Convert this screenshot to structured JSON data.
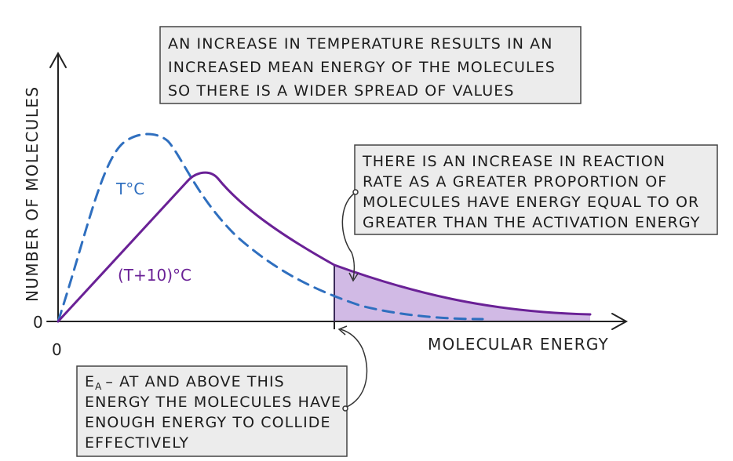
{
  "diagram": {
    "y_axis_label": "NUMBER OF MOLECULES",
    "x_axis_label": "MOLECULAR ENERGY",
    "origin_x_label": "0",
    "origin_y_label": "0",
    "curve_low_label": "T°C",
    "curve_high_label": "(T+10)°C",
    "colors": {
      "curve_low": "#2f6fbf",
      "curve_high": "#6a2196",
      "shaded_area": "#c9aee0",
      "box_fill": "#ececec",
      "box_border": "#444444"
    }
  },
  "box_top": {
    "lines": [
      "AN INCREASE IN TEMPERATURE RESULTS IN AN",
      "INCREASED MEAN ENERGY OF THE MOLECULES",
      "SO THERE IS A WIDER SPREAD OF VALUES"
    ]
  },
  "box_right": {
    "lines": [
      "THERE IS AN INCREASE IN REACTION",
      "RATE AS A GREATER PROPORTION OF",
      "MOLECULES HAVE ENERGY EQUAL TO OR",
      "GREATER THAN THE ACTIVATION ENERGY"
    ]
  },
  "box_bottom": {
    "ea_symbol": "E",
    "ea_subscript": "A",
    "first_line_rest": "– AT AND ABOVE THIS",
    "lines": [
      "ENERGY THE MOLECULES HAVE",
      "ENOUGH ENERGY TO COLLIDE",
      "EFFECTIVELY"
    ]
  }
}
